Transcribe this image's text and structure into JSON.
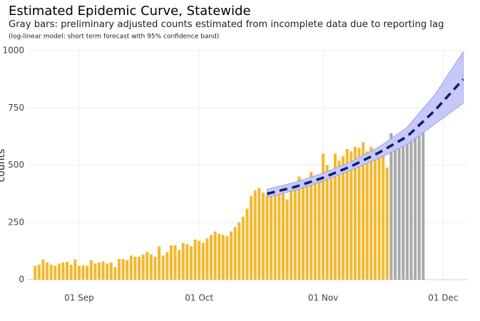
{
  "chart_data": {
    "type": "bar",
    "title": "Estimated Epidemic Curve, Statewide",
    "subtitle": "Gray bars: preliminary adjusted counts estimated from incomplete data due to reporting lag",
    "note": "(log-linear model: short term forecast with 95% confidence band)",
    "ylabel": "counts",
    "xlim": [
      "19 Aug",
      "07 Dec"
    ],
    "xticks": [
      "01 Sep",
      "01 Oct",
      "01 Nov",
      "01 Dec"
    ],
    "ylim": [
      0,
      1000
    ],
    "yticks": [
      0,
      250,
      500,
      750,
      1000
    ],
    "grid": true,
    "series": [
      {
        "type": "bar",
        "color": "#f2b92e",
        "x": [
          "21 Aug",
          "22 Aug",
          "23 Aug",
          "24 Aug",
          "25 Aug",
          "26 Aug",
          "27 Aug",
          "28 Aug",
          "29 Aug",
          "30 Aug",
          "31 Aug",
          "01 Sep",
          "02 Sep",
          "03 Sep",
          "04 Sep",
          "05 Sep",
          "06 Sep",
          "07 Sep",
          "08 Sep",
          "09 Sep",
          "10 Sep",
          "11 Sep",
          "12 Sep",
          "13 Sep",
          "14 Sep",
          "15 Sep",
          "16 Sep",
          "17 Sep",
          "18 Sep",
          "19 Sep",
          "20 Sep",
          "21 Sep",
          "22 Sep",
          "23 Sep",
          "24 Sep",
          "25 Sep",
          "26 Sep",
          "27 Sep",
          "28 Sep",
          "29 Sep",
          "30 Sep",
          "01 Oct",
          "02 Oct",
          "03 Oct",
          "04 Oct",
          "05 Oct",
          "06 Oct",
          "07 Oct",
          "08 Oct",
          "09 Oct",
          "10 Oct",
          "11 Oct",
          "12 Oct",
          "13 Oct",
          "14 Oct",
          "15 Oct",
          "16 Oct",
          "17 Oct",
          "18 Oct",
          "19 Oct",
          "20 Oct",
          "21 Oct",
          "22 Oct",
          "23 Oct",
          "24 Oct",
          "25 Oct",
          "26 Oct",
          "27 Oct",
          "28 Oct",
          "29 Oct",
          "30 Oct",
          "31 Oct",
          "01 Nov",
          "02 Nov",
          "03 Nov",
          "04 Nov",
          "05 Nov",
          "06 Nov",
          "07 Nov",
          "08 Nov",
          "09 Nov",
          "10 Nov",
          "11 Nov",
          "12 Nov",
          "13 Nov",
          "14 Nov",
          "15 Nov",
          "16 Nov",
          "17 Nov"
        ],
        "values": [
          60,
          65,
          88,
          75,
          65,
          60,
          70,
          75,
          78,
          65,
          88,
          60,
          62,
          60,
          85,
          70,
          75,
          80,
          70,
          75,
          55,
          90,
          90,
          85,
          105,
          100,
          100,
          110,
          120,
          110,
          100,
          145,
          105,
          120,
          150,
          150,
          130,
          160,
          155,
          145,
          175,
          170,
          160,
          180,
          195,
          210,
          200,
          195,
          190,
          210,
          230,
          250,
          275,
          310,
          365,
          390,
          400,
          380,
          370,
          395,
          375,
          380,
          385,
          350,
          420,
          400,
          450,
          430,
          435,
          470,
          450,
          460,
          550,
          500,
          480,
          550,
          520,
          540,
          570,
          560,
          580,
          575,
          600,
          560,
          580,
          570,
          565,
          575,
          490
        ]
      },
      {
        "type": "bar",
        "color": "#a9a9a9",
        "x": [
          "18 Nov",
          "19 Nov",
          "20 Nov",
          "21 Nov",
          "22 Nov",
          "23 Nov",
          "24 Nov",
          "25 Nov",
          "26 Nov"
        ],
        "values": [
          640,
          620,
          625,
          630,
          640,
          665,
          680,
          690,
          695
        ]
      },
      {
        "type": "forecast",
        "color": "#0b1f6b",
        "band_color": "#c6c8f8",
        "x": [
          "18 Oct",
          "25 Oct",
          "01 Nov",
          "08 Nov",
          "15 Nov",
          "22 Nov",
          "29 Nov",
          "06 Dec"
        ],
        "values": [
          375,
          405,
          445,
          495,
          555,
          625,
          740,
          875
        ],
        "lower": [
          360,
          390,
          430,
          478,
          530,
          590,
          680,
          770
        ],
        "upper": [
          395,
          425,
          465,
          515,
          580,
          665,
          810,
          995
        ]
      }
    ]
  }
}
